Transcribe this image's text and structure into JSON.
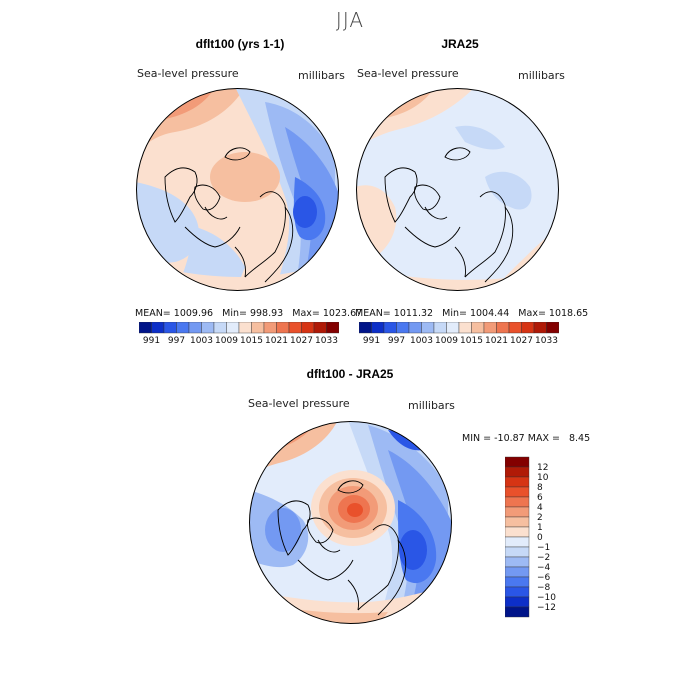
{
  "season_title": "JJA",
  "panels": {
    "model": {
      "title": "dflt100 (yrs 1-1)",
      "variable": "Sea-level pressure",
      "units": "millibars",
      "stats": "MEAN= 1009.96   Min= 998.93   Max= 1023.67"
    },
    "obs": {
      "title": "JRA25",
      "variable": "Sea-level pressure",
      "units": "millibars",
      "stats": "MEAN= 1011.32   Min= 1004.44   Max= 1018.65"
    },
    "diff": {
      "title": "dflt100 - JRA25",
      "variable": "Sea-level pressure",
      "units": "millibars",
      "stats": "MIN = -10.87 MAX =   8.45"
    }
  },
  "colorbar_abs": {
    "labels": [
      "991",
      "997",
      "1003",
      "1009",
      "1015",
      "1021",
      "1027",
      "1033"
    ],
    "colors": [
      "#001489",
      "#0d2fc8",
      "#2a56e6",
      "#4a78f0",
      "#7399f2",
      "#9dbaf4",
      "#c6d9f7",
      "#e2ecfb",
      "#fbe0cf",
      "#f6bfa0",
      "#f29b78",
      "#ee7550",
      "#e9512b",
      "#d63414",
      "#b01a07",
      "#830000"
    ]
  },
  "colorbar_diff": {
    "labels": [
      "12",
      "10",
      "8",
      "6",
      "4",
      "2",
      "1",
      "0",
      "−1",
      "−2",
      "−4",
      "−6",
      "−8",
      "−10",
      "−12"
    ],
    "colors": [
      "#830000",
      "#b01a07",
      "#d63414",
      "#e9512b",
      "#ee7550",
      "#f29b78",
      "#f6bfa0",
      "#fbe0cf",
      "#e2ecfb",
      "#c6d9f7",
      "#9dbaf4",
      "#7399f2",
      "#4a78f0",
      "#2a56e6",
      "#0d2fc8",
      "#001489"
    ]
  },
  "colors": {
    "land_outline": "#000000",
    "neutral": "#f4f4f4"
  }
}
